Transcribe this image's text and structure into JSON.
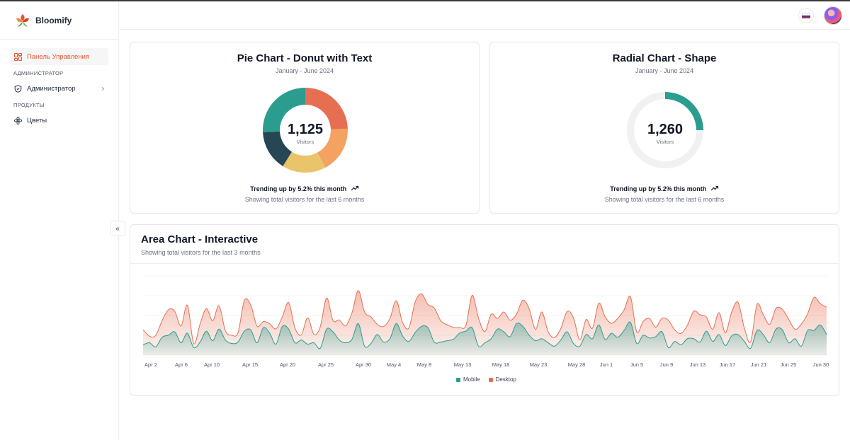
{
  "app": {
    "name": "Bloomify"
  },
  "sidebar": {
    "items": [
      {
        "label": "Панель Управления",
        "active": true,
        "icon": "dashboard-icon"
      },
      {
        "section": "АДМИНИСТРАТОР"
      },
      {
        "label": "Администратор",
        "icon": "shield-icon",
        "has_children": true
      },
      {
        "section": "ПРОДУКТЫ"
      },
      {
        "label": "Цветы",
        "icon": "flower-icon"
      }
    ],
    "collapse_icon": "«"
  },
  "header": {
    "language": "ru",
    "flag_icon": "russia-flag-icon",
    "avatar": "user-avatar"
  },
  "colors": {
    "accent": "#e4552f",
    "mobile": "#2a9d8f",
    "desktop": "#e76f51",
    "dark": "#264653",
    "yellow": "#e9c46a",
    "orange": "#f4a261"
  },
  "pie_card": {
    "title": "Pie Chart - Donut with Text",
    "subtitle": "January - June 2024",
    "center_value": "1,125",
    "center_label": "Visitors",
    "trend": "Trending up by 5.2% this month",
    "note": "Showing total visitors for the last 6 months"
  },
  "radial_card": {
    "title": "Radial Chart - Shape",
    "subtitle": "January - June 2024",
    "center_value": "1,260",
    "center_label": "Visitors",
    "trend": "Trending up by 5.2% this month",
    "note": "Showing total visitors for the last 6 months"
  },
  "area_card": {
    "title": "Area Chart - Interactive",
    "subtitle": "Showing total visitors for the last 3 months"
  },
  "chart_data": [
    {
      "type": "pie",
      "title": "Pie Chart - Donut with Text",
      "subtitle": "January - June 2024",
      "slices": [
        {
          "value": 275,
          "color": "#e76f51"
        },
        {
          "value": 200,
          "color": "#f4a261"
        },
        {
          "value": 187,
          "color": "#e9c46a"
        },
        {
          "value": 173,
          "color": "#264653"
        },
        {
          "value": 290,
          "color": "#2a9d8f"
        }
      ],
      "center_text": "1,125",
      "center_label": "Visitors"
    },
    {
      "type": "radial",
      "title": "Radial Chart - Shape",
      "subtitle": "January - June 2024",
      "value": 1260,
      "fraction": 0.25,
      "center_text": "1,260",
      "center_label": "Visitors"
    },
    {
      "type": "area",
      "title": "Area Chart - Interactive",
      "subtitle": "Showing total visitors for the last 3 months",
      "x_ticks": [
        "Apr 2",
        "Apr 6",
        "Apr 10",
        "Apr 15",
        "Apr 20",
        "Apr 25",
        "Apr 30",
        "May 4",
        "May 8",
        "May 13",
        "May 18",
        "May 23",
        "May 28",
        "Jun 1",
        "Jun 5",
        "Jun 9",
        "Jun 13",
        "Jun 17",
        "Jun 21",
        "Jun 25",
        "Jun 30"
      ],
      "legend": [
        "Mobile",
        "Desktop"
      ],
      "series": [
        {
          "name": "Mobile",
          "values": [
            150,
            180,
            120,
            260,
            290,
            340,
            180,
            320,
            110,
            190,
            350,
            210,
            380,
            220,
            170,
            190,
            350,
            370,
            180,
            400,
            320,
            160,
            420,
            380,
            180,
            220,
            160,
            180,
            100,
            380,
            340,
            220,
            180,
            230,
            460,
            130,
            170,
            300,
            190,
            240,
            460,
            280,
            200,
            330,
            420,
            400,
            190,
            190,
            210,
            230,
            320,
            350,
            400,
            130,
            180,
            240,
            380,
            340,
            270,
            460,
            420,
            290,
            210,
            240,
            180,
            130,
            220,
            340,
            170,
            130,
            300,
            240,
            440,
            230,
            320,
            260,
            360,
            480,
            170,
            290,
            250,
            270,
            340,
            110,
            200,
            150,
            240,
            240,
            190,
            350,
            200,
            300,
            140,
            280,
            300,
            200,
            100,
            360,
            300,
            180,
            380,
            370,
            180,
            240,
            130,
            360,
            360,
            440,
            300
          ]
        },
        {
          "name": "Desktop",
          "values": [
            222,
            97,
            167,
            242,
            373,
            301,
            245,
            409,
            59,
            261,
            327,
            292,
            342,
            137,
            120,
            138,
            446,
            364,
            243,
            89,
            137,
            224,
            138,
            387,
            215,
            75,
            383,
            122,
            315,
            454,
            165,
            293,
            247,
            385,
            481,
            498,
            388,
            149,
            227,
            293,
            335,
            197,
            197,
            448,
            473,
            338,
            499,
            315,
            235,
            177,
            82,
            81,
            472,
            409,
            162,
            356,
            155,
            289,
            240,
            136,
            381,
            386,
            167,
            389,
            162,
            127,
            167,
            297,
            373,
            93,
            219,
            151,
            318,
            329,
            144,
            276,
            299,
            372,
            168,
            200,
            286,
            138,
            199,
            398,
            168,
            167,
            196,
            398,
            400,
            206,
            179,
            320,
            186,
            348,
            470,
            194,
            94,
            381,
            287,
            268,
            301,
            298,
            344,
            138,
            322,
            243,
            480,
            312,
            400
          ]
        }
      ]
    }
  ]
}
